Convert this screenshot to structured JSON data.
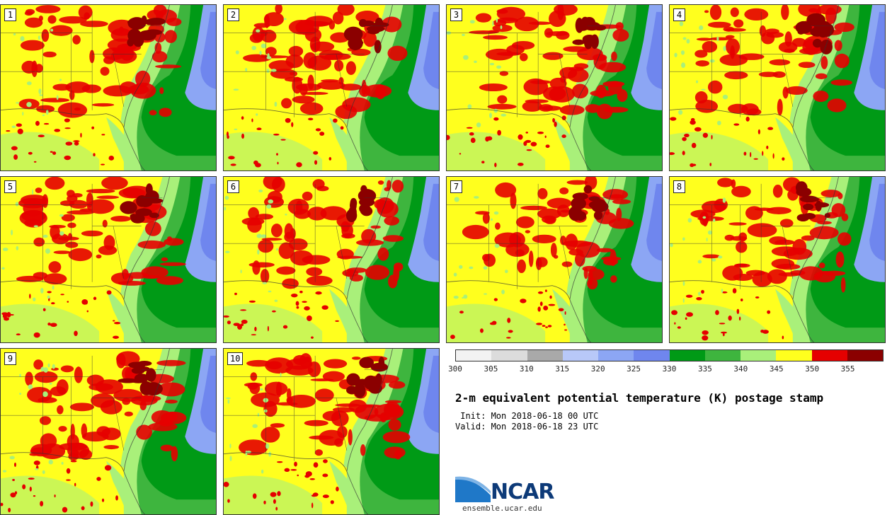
{
  "panels": [
    "1",
    "2",
    "3",
    "4",
    "5",
    "6",
    "7",
    "8",
    "9",
    "10"
  ],
  "colorbar": {
    "ticks": [
      "300",
      "305",
      "310",
      "315",
      "320",
      "325",
      "330",
      "335",
      "340",
      "345",
      "350",
      "355"
    ],
    "colors": [
      "#f2f2f2",
      "#dcdcdc",
      "#a9a9a9",
      "#b8c8f8",
      "#8ca6f4",
      "#6f86ee",
      "#009a16",
      "#3eb53e",
      "#a9f07a",
      "#ffff1e",
      "#e50000",
      "#8b0000"
    ]
  },
  "title": "2-m equivalent potential temperature (K) postage stamp",
  "init_line": " Init: Mon 2018-06-18 00 UTC",
  "valid_line": "Valid: Mon 2018-06-18 23 UTC",
  "logo": {
    "name": "NCAR",
    "url": "ensemble.ucar.edu"
  },
  "map_colors": {
    "warm_yellow": "#ffff1e",
    "light_green": "#a9f07a",
    "mid_green": "#3eb53e",
    "dark_green": "#009a16",
    "blue": "#6f86ee",
    "light_blue": "#8ca6f4",
    "red": "#e50000",
    "dark_red": "#8b0000"
  }
}
